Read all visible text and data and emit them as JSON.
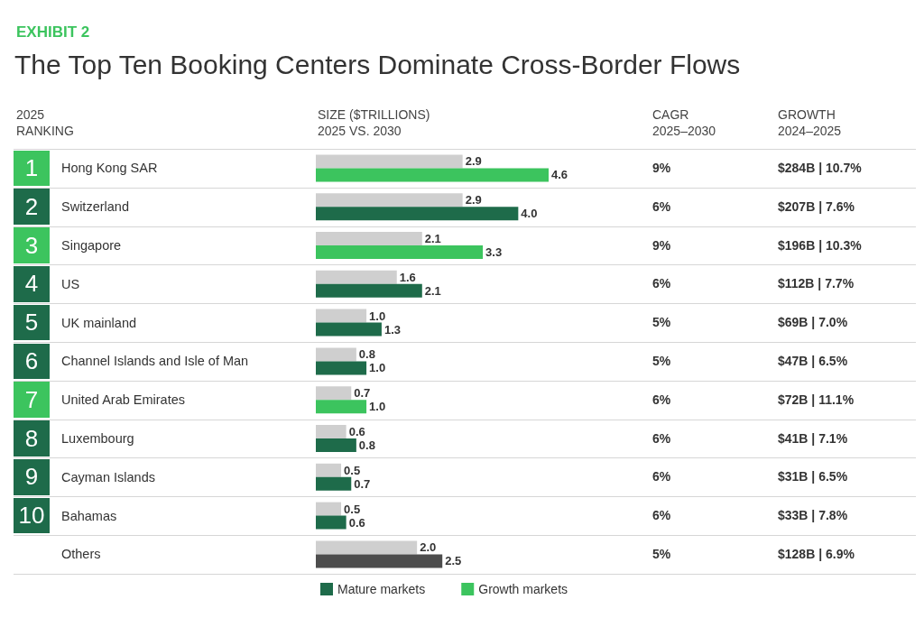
{
  "chart_data": {
    "type": "bar",
    "orientation": "horizontal",
    "subtitle": "EXHIBIT 2",
    "title": "The Top Ten Booking Centers Dominate Cross-Border Flows",
    "categories": [
      "Hong Kong SAR",
      "Switzerland",
      "Singapore",
      "US",
      "UK mainland",
      "Channel Islands and Isle of Man",
      "United Arab Emirates",
      "Luxembourg",
      "Cayman Islands",
      "Bahamas",
      "Others"
    ],
    "series": [
      {
        "color": "#cfcfcf",
        "values": [
          2.9,
          2.9,
          2.1,
          1.6,
          1.0,
          0.8,
          0.7,
          0.6,
          0.5,
          0.5,
          2.0
        ],
        "value_labels": [
          "2.9",
          "2.9",
          "2.1",
          "1.6",
          "1.0",
          "0.8",
          "0.7",
          "0.6",
          "0.5",
          "0.5",
          "2.0"
        ]
      },
      {
        "name": "Mature markets",
        "color": "#1e6b4a",
        "values": [
          null,
          4.0,
          null,
          2.1,
          1.3,
          1.0,
          null,
          0.8,
          0.7,
          0.6,
          null
        ],
        "value_labels": [
          null,
          "4.0",
          null,
          "2.1",
          "1.3",
          "1.0",
          null,
          "0.8",
          "0.7",
          "0.6",
          null
        ]
      },
      {
        "name": "Growth markets",
        "color": "#3cc45e",
        "values": [
          4.6,
          null,
          3.3,
          null,
          null,
          null,
          1.0,
          null,
          null,
          null,
          null
        ],
        "value_labels": [
          "4.6",
          null,
          "3.3",
          null,
          null,
          null,
          "1.0",
          null,
          null,
          null,
          null
        ]
      },
      {
        "color": "#4d4d4d",
        "values": [
          null,
          null,
          null,
          null,
          null,
          null,
          null,
          null,
          null,
          null,
          2.5
        ],
        "value_labels": [
          null,
          null,
          null,
          null,
          null,
          null,
          null,
          null,
          null,
          null,
          "2.5"
        ]
      }
    ],
    "tick_labels": "y",
    "legend": "bottom",
    "annotations": [
      "2025 RANKING",
      "SIZE ($TRILLIONS) 2025 VS. 2030",
      "CAGR 2025–2030",
      "GROWTH 2024–2025",
      "1",
      "2",
      "3",
      "4",
      "5",
      "6",
      "7",
      "8",
      "9",
      "10",
      "9%",
      "6%",
      "9%",
      "6%",
      "5%",
      "5%",
      "6%",
      "6%",
      "6%",
      "6%",
      "5%",
      "$284B | 10.7%",
      "$207B | 7.6%",
      "$196B | 10.3%",
      "$112B | 7.7%",
      "$69B | 7.0%",
      "$47B | 6.5%",
      "$72B | 11.1%",
      "$41B | 7.1%",
      "$31B | 6.5%",
      "$33B | 7.8%",
      "$128B | 6.9%"
    ]
  }
}
